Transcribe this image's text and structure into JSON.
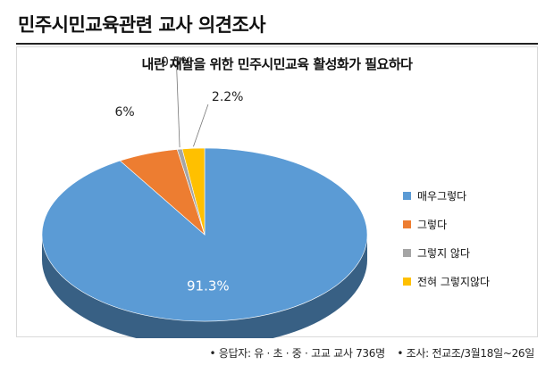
{
  "header": {
    "title": "민주시민교육관련 교사 의견조사"
  },
  "footer": {
    "respondents": "• 응답자: 유 · 초 · 중 · 고교 교사 736명",
    "survey": "• 조사: 전교조/3월18일~26일"
  },
  "chart_data": {
    "type": "pie",
    "title": "내란 재발을 위한 민주시민교육 활성화가 필요하다",
    "categories": [
      "매우그렇다",
      "그렇다",
      "그렇지 않다",
      "전혀 그렇지않다"
    ],
    "values": [
      91.3,
      6,
      0.5,
      2.2
    ],
    "labels": [
      "91.3%",
      "6%",
      "0.5%",
      "2.2%"
    ],
    "colors": [
      "#5b9bd5",
      "#ed7d31",
      "#a5a5a5",
      "#ffc000"
    ],
    "legend_position": "right",
    "style": "3d"
  }
}
